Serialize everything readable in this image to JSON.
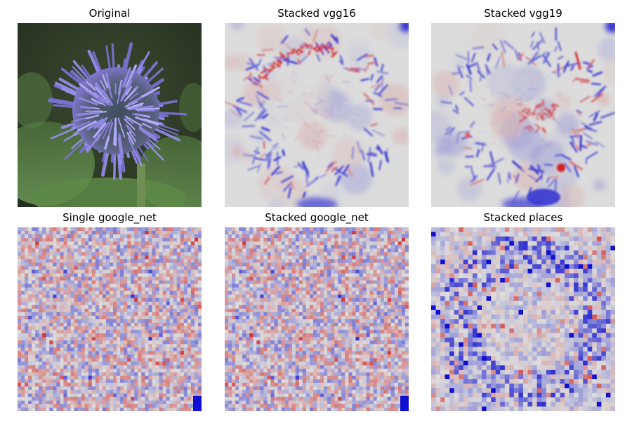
{
  "figure": {
    "panels": [
      {
        "id": "original",
        "title": "Original",
        "kind": "photo"
      },
      {
        "id": "vgg16",
        "title": "Stacked vgg16",
        "kind": "smooth-heatmap"
      },
      {
        "id": "vgg19",
        "title": "Stacked vgg19",
        "kind": "smooth-heatmap"
      },
      {
        "id": "single-google-net",
        "title": "Single google_net",
        "kind": "grid-heatmap"
      },
      {
        "id": "stacked-google-net",
        "title": "Stacked google_net",
        "kind": "grid-heatmap"
      },
      {
        "id": "stacked-places",
        "title": "Stacked places",
        "kind": "coarse-grid-heatmap"
      }
    ],
    "colormap": {
      "negative": "#1010d0",
      "neutral": "#dcdcdc",
      "positive": "#d01010"
    },
    "photo_colors": {
      "background_dark": "#2e3a26",
      "foliage": "#4f7a3e",
      "flower_petal": "#8c82e0",
      "flower_core": "#4c5a6a",
      "stem": "#6f8e52"
    }
  }
}
